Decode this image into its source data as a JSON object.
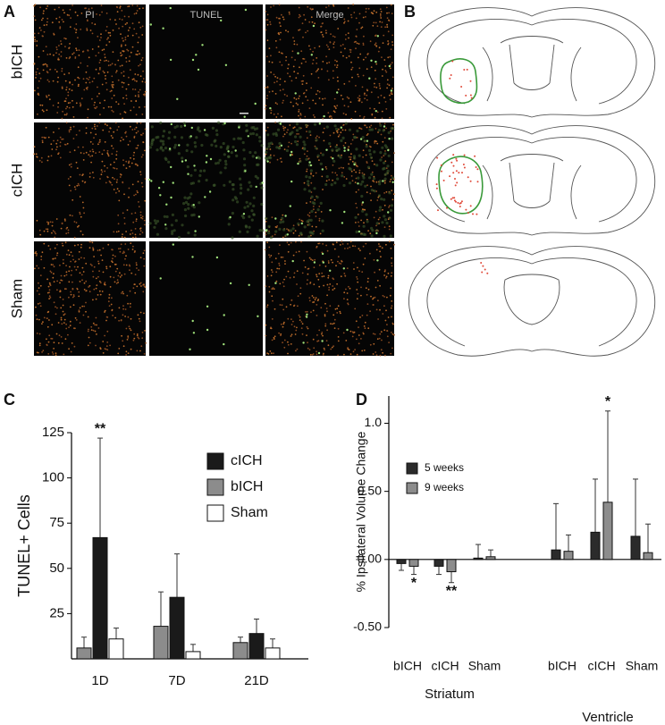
{
  "panel_a": {
    "label": "A",
    "columns": [
      "PI",
      "TUNEL",
      "Merge"
    ],
    "rows": [
      "bICH",
      "cICH",
      "Sham"
    ]
  },
  "panel_b": {
    "label": "B"
  },
  "chart_data": [
    {
      "type": "bar",
      "label": "C",
      "ylabel": "TUNEL+ Cells",
      "categories": [
        "1D",
        "7D",
        "21D"
      ],
      "series": [
        {
          "name": "cICH",
          "color": "#1a1a1a",
          "values": [
            67,
            34,
            14
          ],
          "errors": [
            55,
            24,
            8
          ]
        },
        {
          "name": "bICH",
          "color": "#8c8c8c",
          "values": [
            6,
            18,
            9
          ],
          "errors": [
            6,
            19,
            3
          ]
        },
        {
          "name": "Sham",
          "color": "#ffffff",
          "values": [
            11,
            4,
            6
          ],
          "errors": [
            6,
            4,
            5
          ]
        }
      ],
      "ylim": [
        0,
        125
      ],
      "yticks": [
        25,
        50,
        75,
        100,
        125
      ],
      "annotations": [
        "**"
      ],
      "legend": "upper right"
    },
    {
      "type": "bar",
      "label": "D",
      "ylabel": "% Ipsilateral Volume Change",
      "categories": [
        "bICH",
        "cICH",
        "Sham",
        "bICH",
        "cICH",
        "Sham"
      ],
      "groups": [
        "Striatum",
        "Ventricle"
      ],
      "series": [
        {
          "name": "5 weeks",
          "color": "#2b2b2b",
          "values": [
            -0.03,
            -0.05,
            0.01,
            0.07,
            0.2,
            0.17
          ],
          "errors": [
            0.05,
            0.06,
            0.1,
            0.34,
            0.39,
            0.42
          ]
        },
        {
          "name": "9 weeks",
          "color": "#8c8c8c",
          "values": [
            -0.05,
            -0.09,
            0.02,
            0.06,
            0.42,
            0.05
          ],
          "errors": [
            0.06,
            0.08,
            0.05,
            0.12,
            0.67,
            0.21
          ]
        }
      ],
      "ylim": [
        -0.5,
        1.2
      ],
      "yticks": [
        {
          "value": -0.5,
          "label": "-0.50"
        },
        {
          "value": 0,
          "label": "0.00"
        },
        {
          "value": 0.5,
          "label": "0.50"
        },
        {
          "value": 1,
          "label": "1.0"
        }
      ],
      "annotations": [
        "*",
        "**",
        "*"
      ],
      "legend": "upper left"
    }
  ]
}
